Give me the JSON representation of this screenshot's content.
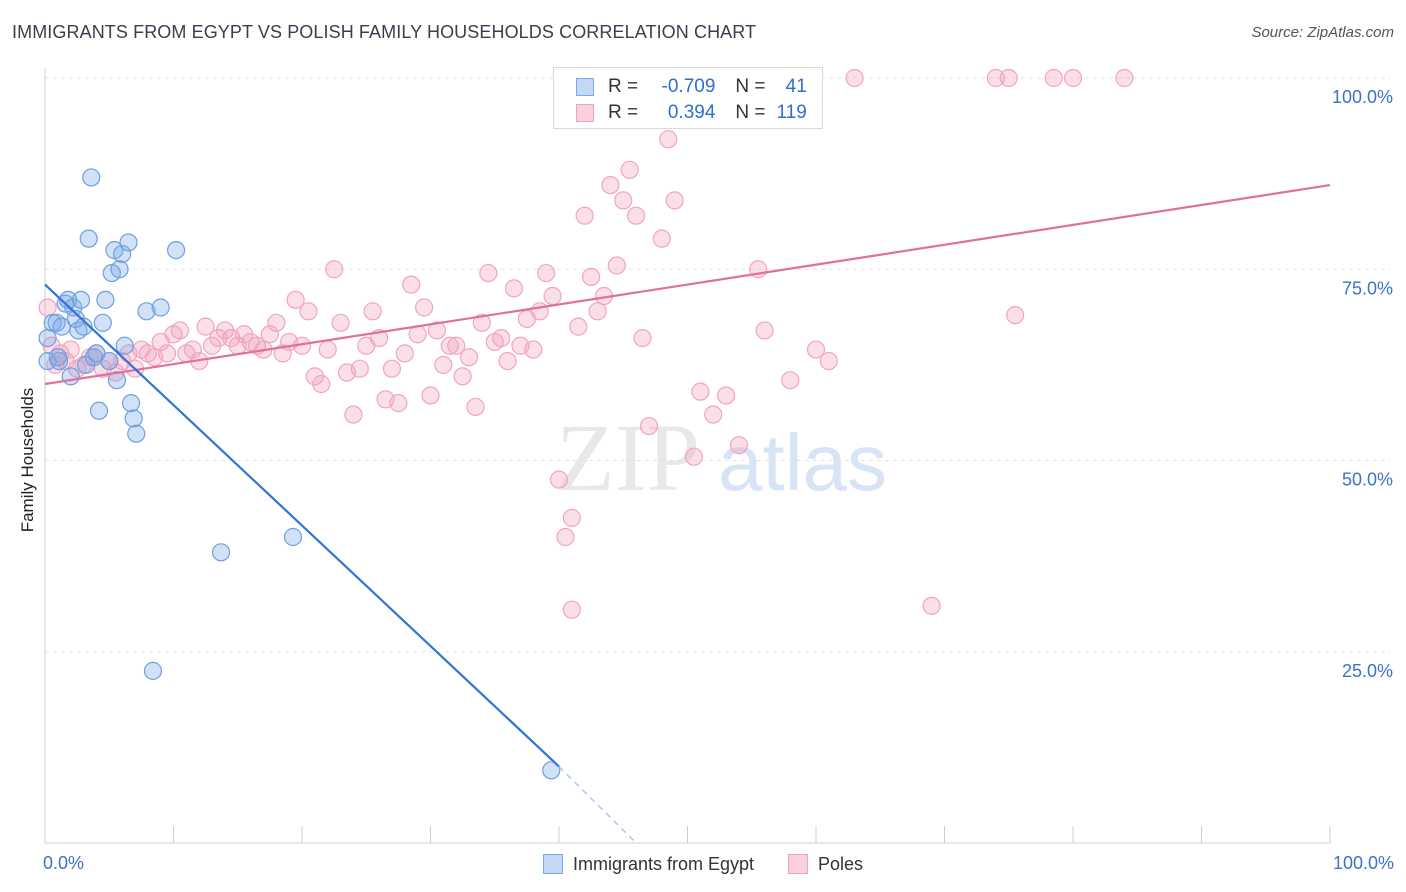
{
  "title": "IMMIGRANTS FROM EGYPT VS POLISH FAMILY HOUSEHOLDS CORRELATION CHART",
  "source": "Source: ZipAtlas.com",
  "watermark": {
    "zip": "ZIP",
    "atlas": "atlas"
  },
  "legend": {
    "r_label": "R =",
    "n_label": "N =",
    "series1": {
      "r": "-0.709",
      "n": "41"
    },
    "series2": {
      "r": "0.394",
      "n": "119"
    }
  },
  "bottom_legend": {
    "series1": "Immigrants from Egypt",
    "series2": "Poles"
  },
  "x_labels": {
    "left": "0.0%",
    "right": "100.0%"
  },
  "chart_data": {
    "type": "scatter",
    "ylabel": "Family Households",
    "xlim": [
      0,
      100
    ],
    "ylim": [
      0,
      100
    ],
    "y_ticks": [
      {
        "value": 25,
        "label": "25.0%"
      },
      {
        "value": 50,
        "label": "50.0%"
      },
      {
        "value": 75,
        "label": "75.0%"
      },
      {
        "value": 100,
        "label": "100.0%"
      }
    ],
    "grid": true,
    "colors": {
      "series1": "#7aa9e6",
      "series2": "#f2a4bf",
      "line1": "#2f74d6",
      "line2": "#e0709b"
    },
    "series": [
      {
        "name": "Immigrants from Egypt",
        "trend": {
          "x": [
            0,
            40
          ],
          "y": [
            73,
            10
          ],
          "dashed_to": {
            "x": 46,
            "y": 0
          }
        },
        "points": [
          [
            0.2,
            66
          ],
          [
            0.2,
            63
          ],
          [
            0.6,
            68
          ],
          [
            0.9,
            68
          ],
          [
            1.1,
            63
          ],
          [
            1.3,
            67.5
          ],
          [
            1.6,
            70.5
          ],
          [
            1.8,
            71
          ],
          [
            2.0,
            61
          ],
          [
            2.2,
            70
          ],
          [
            2.4,
            68.5
          ],
          [
            2.6,
            67
          ],
          [
            2.8,
            71
          ],
          [
            3.0,
            67.5
          ],
          [
            3.2,
            62.5
          ],
          [
            3.4,
            79
          ],
          [
            3.6,
            87
          ],
          [
            3.8,
            63.5
          ],
          [
            4.0,
            64
          ],
          [
            4.2,
            56.5
          ],
          [
            4.5,
            68
          ],
          [
            4.7,
            71
          ],
          [
            5.2,
            74.5
          ],
          [
            5.4,
            77.5
          ],
          [
            5.6,
            60.5
          ],
          [
            5.8,
            75
          ],
          [
            6.0,
            77
          ],
          [
            6.2,
            65
          ],
          [
            6.5,
            78.5
          ],
          [
            6.7,
            57.5
          ],
          [
            6.9,
            55.5
          ],
          [
            7.1,
            53.5
          ],
          [
            7.9,
            69.5
          ],
          [
            8.4,
            22.5
          ],
          [
            9.0,
            70
          ],
          [
            10.2,
            77.5
          ],
          [
            13.7,
            38
          ],
          [
            19.3,
            40
          ],
          [
            39.4,
            9.5
          ],
          [
            1.0,
            63.5
          ],
          [
            5.0,
            63
          ]
        ]
      },
      {
        "name": "Poles",
        "trend": {
          "x": [
            0,
            100
          ],
          "y": [
            60,
            86
          ]
        },
        "points": [
          [
            0.2,
            70
          ],
          [
            0.5,
            65
          ],
          [
            0.8,
            62.5
          ],
          [
            1.2,
            64
          ],
          [
            1.6,
            63
          ],
          [
            2.0,
            64.5
          ],
          [
            2.5,
            62
          ],
          [
            3.0,
            62.5
          ],
          [
            3.5,
            63.5
          ],
          [
            4.0,
            64
          ],
          [
            4.5,
            62
          ],
          [
            5.0,
            63
          ],
          [
            5.5,
            61.5
          ],
          [
            6.0,
            63
          ],
          [
            6.5,
            64
          ],
          [
            7.0,
            62
          ],
          [
            7.5,
            64.5
          ],
          [
            8.0,
            64
          ],
          [
            8.5,
            63.5
          ],
          [
            9.0,
            65.5
          ],
          [
            9.5,
            64
          ],
          [
            10.0,
            66.5
          ],
          [
            10.5,
            67
          ],
          [
            11.0,
            64
          ],
          [
            11.5,
            64.5
          ],
          [
            12.0,
            63
          ],
          [
            12.5,
            67.5
          ],
          [
            13.0,
            65
          ],
          [
            13.5,
            66
          ],
          [
            14.0,
            67
          ],
          [
            14.5,
            66
          ],
          [
            15.0,
            65
          ],
          [
            15.5,
            66.5
          ],
          [
            16.0,
            65.5
          ],
          [
            16.5,
            65
          ],
          [
            17.0,
            64.5
          ],
          [
            17.5,
            66.5
          ],
          [
            18.0,
            68
          ],
          [
            18.5,
            64
          ],
          [
            19.0,
            65.5
          ],
          [
            19.5,
            71
          ],
          [
            20.0,
            65
          ],
          [
            20.5,
            69.5
          ],
          [
            21.0,
            61
          ],
          [
            21.5,
            60
          ],
          [
            22.0,
            64.5
          ],
          [
            22.5,
            75
          ],
          [
            23.0,
            68
          ],
          [
            23.5,
            61.5
          ],
          [
            24.0,
            56
          ],
          [
            24.5,
            62
          ],
          [
            25.0,
            65
          ],
          [
            25.5,
            69.5
          ],
          [
            26.0,
            66
          ],
          [
            26.5,
            58
          ],
          [
            27.0,
            62
          ],
          [
            27.5,
            57.5
          ],
          [
            28.0,
            64
          ],
          [
            28.5,
            73
          ],
          [
            29.0,
            66.5
          ],
          [
            29.5,
            70
          ],
          [
            30.0,
            58.5
          ],
          [
            30.5,
            67
          ],
          [
            31.0,
            62.5
          ],
          [
            31.5,
            65
          ],
          [
            32.0,
            65
          ],
          [
            32.5,
            61
          ],
          [
            33.0,
            63.5
          ],
          [
            33.5,
            57
          ],
          [
            34.0,
            68
          ],
          [
            34.5,
            74.5
          ],
          [
            35.0,
            65.5
          ],
          [
            35.5,
            66
          ],
          [
            36.0,
            63
          ],
          [
            36.5,
            72.5
          ],
          [
            37.0,
            65
          ],
          [
            37.5,
            68.5
          ],
          [
            38.0,
            64.5
          ],
          [
            38.5,
            69.5
          ],
          [
            39.0,
            74.5
          ],
          [
            39.5,
            71.5
          ],
          [
            40.0,
            47.5
          ],
          [
            40.5,
            40
          ],
          [
            41.0,
            42.5
          ],
          [
            41.5,
            67.5
          ],
          [
            42.0,
            82
          ],
          [
            42.5,
            74
          ],
          [
            43.0,
            69.5
          ],
          [
            43.5,
            71.5
          ],
          [
            44.0,
            86
          ],
          [
            44.5,
            75.5
          ],
          [
            45.0,
            84
          ],
          [
            45.5,
            88
          ],
          [
            46.0,
            82
          ],
          [
            46.5,
            66
          ],
          [
            47.0,
            54.5
          ],
          [
            47.5,
            100
          ],
          [
            48.0,
            79
          ],
          [
            48.5,
            92
          ],
          [
            49.0,
            84
          ],
          [
            49.5,
            100
          ],
          [
            50.5,
            50.5
          ],
          [
            51.0,
            59
          ],
          [
            52.0,
            56
          ],
          [
            53.0,
            58.5
          ],
          [
            54.0,
            52
          ],
          [
            55.5,
            75
          ],
          [
            56.0,
            67
          ],
          [
            58.0,
            60.5
          ],
          [
            60.0,
            64.5
          ],
          [
            61.0,
            63
          ],
          [
            63.0,
            100
          ],
          [
            69.0,
            31
          ],
          [
            74.0,
            100
          ],
          [
            75.0,
            100
          ],
          [
            78.5,
            100
          ],
          [
            80.0,
            100
          ],
          [
            84.0,
            100
          ],
          [
            75.5,
            69
          ],
          [
            41.0,
            30.5
          ]
        ]
      }
    ]
  }
}
